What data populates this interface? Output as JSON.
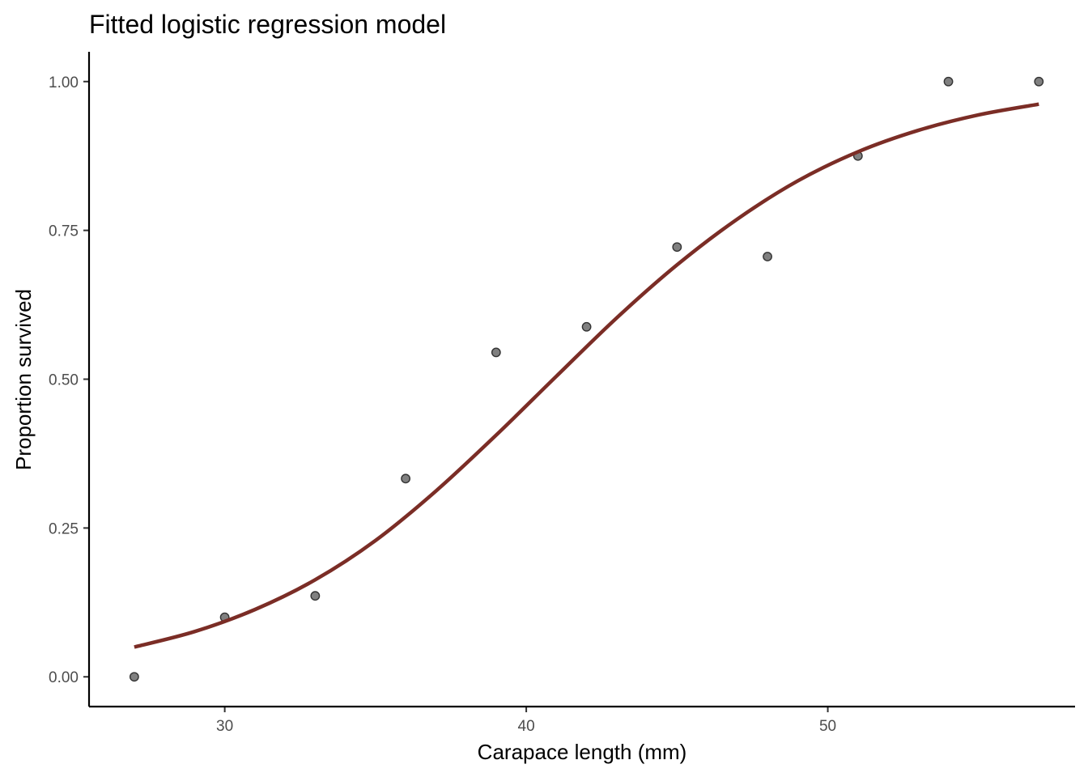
{
  "chart_data": {
    "type": "scatter",
    "title": "Fitted logistic regression model",
    "xlabel": "Carapace length (mm)",
    "ylabel": "Proportion survived",
    "xlim": [
      25.5,
      58.2
    ],
    "ylim": [
      -0.05,
      1.05
    ],
    "x_ticks": [
      30,
      40,
      50
    ],
    "x_tick_labels": [
      "30",
      "40",
      "50"
    ],
    "y_ticks": [
      0,
      0.25,
      0.5,
      0.75,
      1
    ],
    "y_tick_labels": [
      "0.00",
      "0.25",
      "0.50",
      "0.75",
      "1.00"
    ],
    "grid": false,
    "legend": "none",
    "series": [
      {
        "type": "scatter",
        "x": [
          27,
          30,
          33,
          36,
          39,
          42,
          45,
          48,
          51,
          54,
          57
        ],
        "y": [
          0.0,
          0.1,
          0.136,
          0.333,
          0.545,
          0.588,
          0.722,
          0.706,
          0.875,
          1.0,
          1.0
        ]
      },
      {
        "type": "line",
        "x": [
          27,
          29,
          31,
          33,
          35,
          37,
          39,
          41,
          43,
          45,
          47,
          49,
          51,
          53,
          55,
          57
        ],
        "y": [
          0.05,
          0.076,
          0.113,
          0.163,
          0.229,
          0.312,
          0.406,
          0.505,
          0.603,
          0.692,
          0.769,
          0.833,
          0.882,
          0.918,
          0.944,
          0.962
        ]
      }
    ],
    "colors": {
      "points": "#808080",
      "point_stroke": "#333333",
      "fit_line": "#7b2d26"
    }
  }
}
